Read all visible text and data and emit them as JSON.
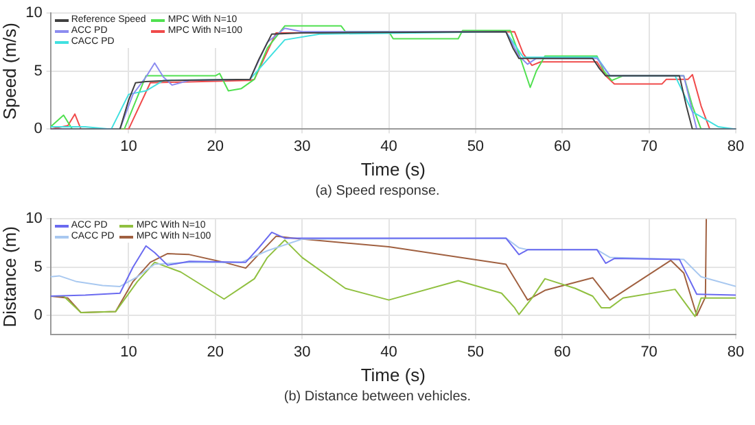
{
  "chart_data": [
    {
      "type": "line",
      "xlabel": "Time (s)",
      "ylabel": "Speed (m/s)",
      "annotations": [
        "(a) Speed response."
      ],
      "xlim": [
        1,
        80
      ],
      "xticks": [
        10,
        20,
        30,
        40,
        50,
        60,
        70,
        80
      ],
      "ylim": [
        0,
        10
      ],
      "yticks": [
        0,
        5,
        10
      ],
      "grid": true,
      "legend": "top left",
      "marker": "none",
      "line_style": "solid",
      "series": [
        {
          "name": "Reference Speed",
          "color": "#404040",
          "x": [
            1,
            9,
            10,
            10.8,
            12,
            15,
            24,
            25,
            26.5,
            30,
            53.5,
            54.3,
            55,
            63.5,
            64.3,
            65,
            73.5,
            74.3,
            75,
            80
          ],
          "values": [
            0,
            0,
            2.5,
            4,
            4.1,
            4.2,
            4.3,
            6,
            8.2,
            8.3,
            8.4,
            7,
            6.1,
            6.1,
            5.2,
            4.6,
            4.6,
            2,
            0,
            0
          ]
        },
        {
          "name": "ACC PD",
          "color": "#8c8cf0",
          "x": [
            1,
            9,
            10.5,
            12,
            13,
            14,
            15,
            17,
            24,
            26,
            28,
            30,
            53.5,
            55,
            56,
            57,
            64,
            65.5,
            74,
            75.5,
            80
          ],
          "values": [
            0,
            0,
            3,
            4.5,
            5.7,
            4.5,
            3.8,
            4.2,
            4.3,
            7.5,
            8.7,
            8.4,
            8.4,
            6.3,
            5.6,
            6.1,
            6.1,
            4.6,
            4.6,
            0,
            0
          ]
        },
        {
          "name": "CACC PD",
          "color": "#40e0e0",
          "x": [
            1,
            5,
            8,
            10,
            12,
            14,
            24,
            26,
            28,
            32,
            53.5,
            55.5,
            64,
            65.5,
            73,
            75,
            78,
            80
          ],
          "values": [
            0.2,
            0.2,
            0,
            3,
            3.3,
            4.2,
            4.3,
            6,
            7.7,
            8.2,
            8.4,
            6.2,
            6.2,
            4.6,
            4.6,
            1.5,
            0.2,
            0
          ]
        },
        {
          "name": "MPC With N=10",
          "color": "#50e050",
          "x": [
            1,
            2.5,
            3.5,
            9.5,
            12,
            20,
            20.5,
            21.5,
            23,
            24.5,
            26,
            28,
            34.5,
            35,
            40,
            40.5,
            48,
            48.5,
            54,
            55,
            56.3,
            57,
            58,
            64,
            64.8,
            65.7,
            67,
            74,
            75,
            76,
            80
          ],
          "values": [
            0.2,
            1.2,
            0,
            0,
            4.6,
            4.6,
            4.8,
            3.3,
            3.5,
            4.3,
            7,
            8.9,
            8.9,
            8.4,
            8.4,
            7.8,
            7.8,
            8.5,
            8.5,
            6.5,
            3.6,
            5,
            6.3,
            6.3,
            5,
            4.2,
            4.6,
            4.6,
            2,
            0,
            0
          ]
        },
        {
          "name": "MPC With N=100",
          "color": "#f04a4a",
          "x": [
            1,
            3,
            3.8,
            4.5,
            10,
            12.5,
            24,
            24.5,
            27,
            54.5,
            55.5,
            56.5,
            57.5,
            64,
            65,
            66,
            71.5,
            72,
            74.5,
            75,
            76,
            77,
            80
          ],
          "values": [
            0,
            0.3,
            1.3,
            0,
            0,
            4,
            4.2,
            4.3,
            8.3,
            8.4,
            6.5,
            5.5,
            5.8,
            5.8,
            4.6,
            3.9,
            3.9,
            4.3,
            4.3,
            4.7,
            2,
            0,
            0
          ]
        }
      ]
    },
    {
      "type": "line",
      "xlabel": "Time (s)",
      "ylabel": "Distance (m)",
      "annotations": [
        "(b) Distance between vehicles."
      ],
      "xlim": [
        1,
        80
      ],
      "xticks": [
        10,
        20,
        30,
        40,
        50,
        60,
        70,
        80
      ],
      "ylim": [
        -2,
        10
      ],
      "yticks": [
        0,
        5,
        10
      ],
      "grid": true,
      "legend": "top left",
      "marker": "none",
      "line_style": "solid",
      "series": [
        {
          "name": "ACC PD",
          "color": "#6a6af0",
          "x": [
            1,
            5,
            9,
            10.5,
            12,
            13,
            14.5,
            17,
            23.5,
            25,
            26.5,
            28,
            53.5,
            55,
            56,
            64,
            65,
            66,
            73.5,
            75.5,
            80
          ],
          "values": [
            2,
            2.1,
            2.3,
            5,
            7.2,
            6.5,
            5.2,
            5.6,
            5.5,
            7,
            8.6,
            8,
            8,
            6.3,
            6.8,
            6.8,
            5.4,
            5.9,
            5.8,
            2.2,
            2.1
          ]
        },
        {
          "name": "CACC PD",
          "color": "#a8c8f0",
          "x": [
            1,
            2,
            4,
            7,
            9,
            11,
            13,
            17,
            23,
            26,
            29,
            30,
            53.5,
            55,
            56,
            64,
            65.5,
            74,
            76,
            80
          ],
          "values": [
            4,
            4.1,
            3.5,
            3.1,
            3,
            4,
            5.3,
            5.5,
            5.5,
            6.7,
            7.6,
            7.9,
            8,
            7,
            6.8,
            6.8,
            6,
            5.8,
            4,
            3
          ]
        },
        {
          "name": "MPC With N=10",
          "color": "#90c040",
          "x": [
            1,
            2.5,
            4.5,
            8.5,
            11,
            13,
            16,
            21,
            23.5,
            24.5,
            26,
            28,
            30,
            35,
            40,
            48,
            53,
            54.5,
            55,
            56.5,
            58,
            61.5,
            63.5,
            64.5,
            65.5,
            67,
            73,
            75.3,
            76,
            80
          ],
          "values": [
            2,
            2,
            0.3,
            0.4,
            3.5,
            5.5,
            4.5,
            1.7,
            3.2,
            3.8,
            6,
            7.8,
            6,
            2.8,
            1.6,
            3.6,
            2.3,
            0.8,
            0.1,
            1.8,
            3.8,
            2.8,
            2,
            0.8,
            0.8,
            1.8,
            2.7,
            -0.1,
            1.8,
            1.8
          ]
        },
        {
          "name": "MPC With N=100",
          "color": "#a06040",
          "x": [
            1,
            3,
            4.5,
            8.5,
            10.5,
            12.5,
            14.5,
            17,
            21,
            23.5,
            25.5,
            27,
            29,
            40,
            53.5,
            56,
            58,
            63.5,
            65.5,
            72.5,
            74,
            75.5,
            76.5,
            76.6
          ],
          "values": [
            2,
            1.8,
            0.3,
            0.4,
            3.5,
            5.5,
            6.4,
            6.3,
            5.5,
            4.9,
            6.8,
            8.2,
            8,
            7.1,
            5.3,
            1.6,
            2.6,
            3.9,
            1.6,
            5.7,
            4.4,
            0,
            1.9,
            10
          ]
        }
      ]
    }
  ]
}
